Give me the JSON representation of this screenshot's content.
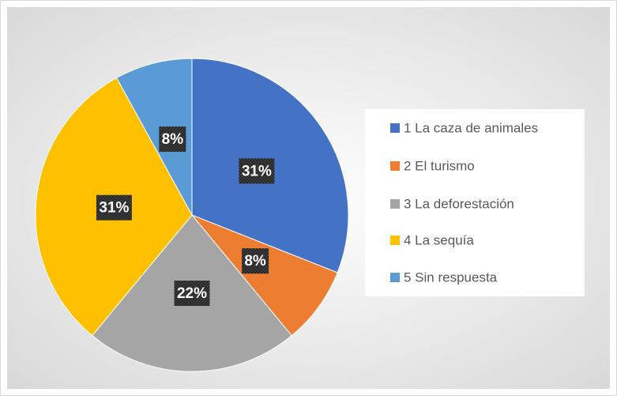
{
  "chart_data": {
    "type": "pie",
    "categories": [
      "1 La caza de animales",
      "2 El turismo",
      "3 La deforestación",
      "4 La sequía",
      "5 Sin respuesta"
    ],
    "values": [
      31,
      8,
      22,
      31,
      8
    ],
    "value_labels": [
      "31%",
      "8%",
      "22%",
      "31%",
      "8%"
    ],
    "colors": [
      "#4472c4",
      "#ed7d31",
      "#a5a5a5",
      "#ffc000",
      "#5b9bd5"
    ],
    "legend": "right"
  }
}
